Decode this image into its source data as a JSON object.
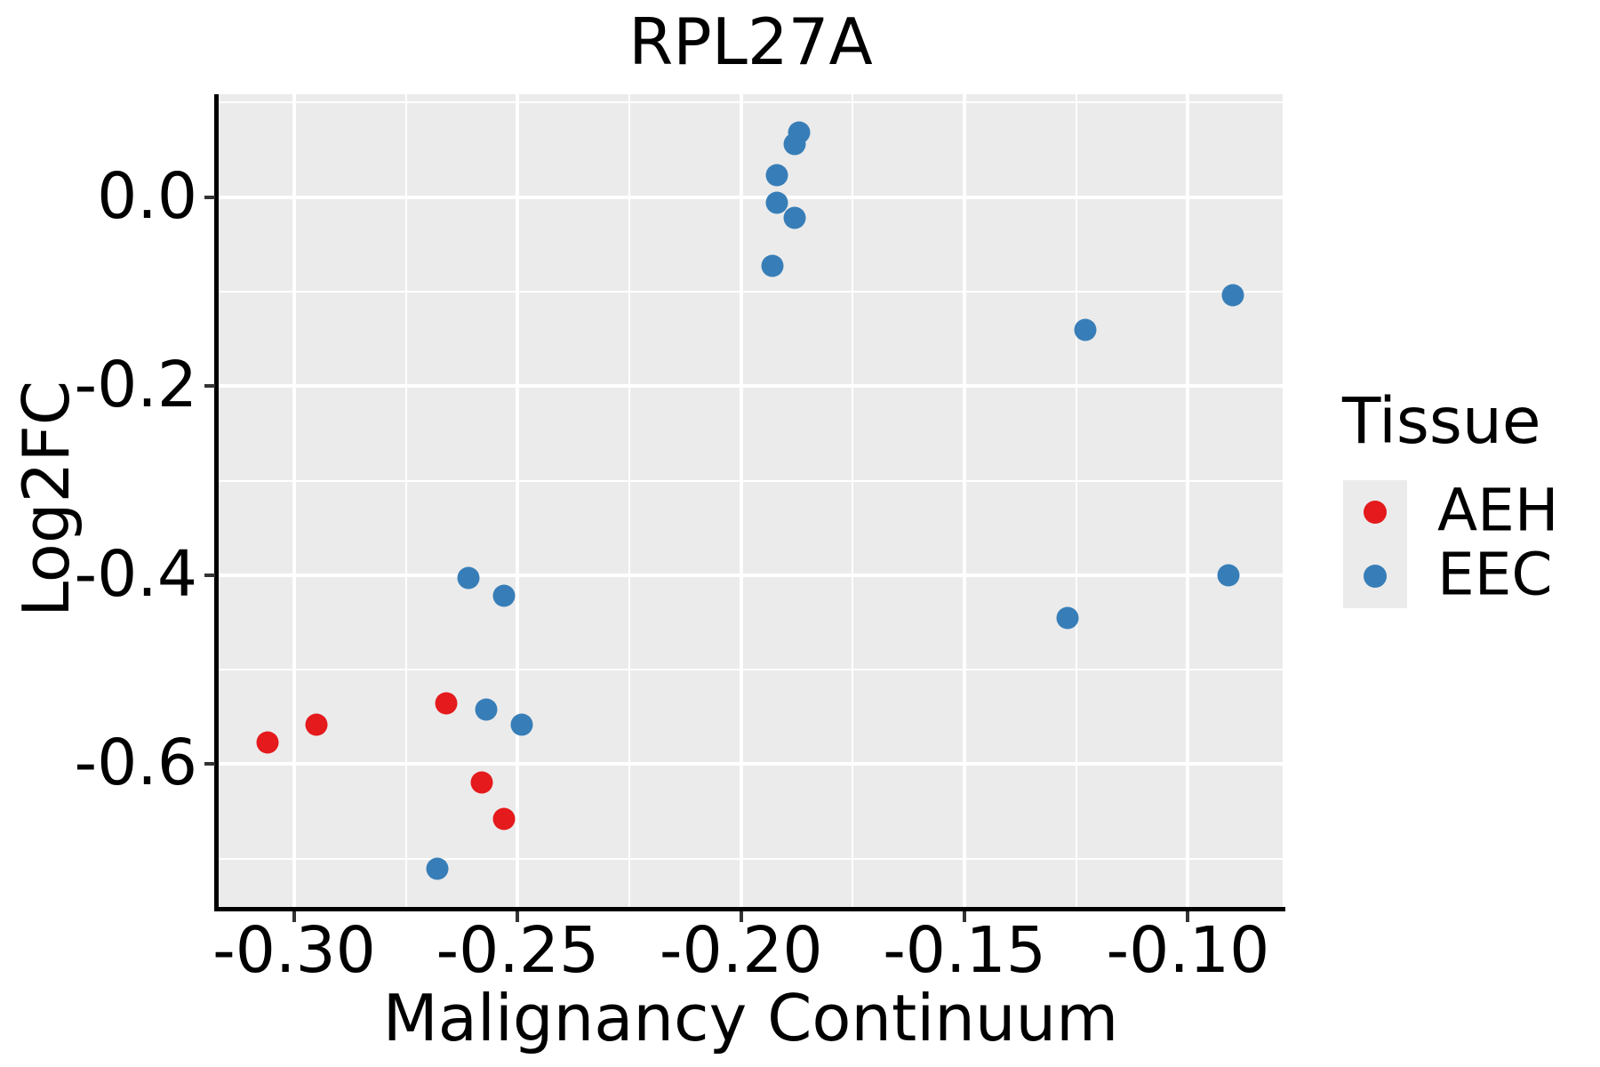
{
  "chart": {
    "title": "RPL27A",
    "xlabel": "Malignancy Continuum",
    "ylabel": "Log2FC"
  },
  "legend": {
    "title": "Tissue",
    "entries": [
      {
        "label": "AEH",
        "color": "#e41a1c"
      },
      {
        "label": "EEC",
        "color": "#377eb8"
      }
    ]
  },
  "chart_data": {
    "type": "scatter",
    "title": "RPL27A",
    "xlabel": "Malignancy Continuum",
    "ylabel": "Log2FC",
    "xlim": [
      -0.3169,
      -0.0788
    ],
    "ylim": [
      -0.7511,
      0.1089
    ],
    "x_ticks": [
      -0.3,
      -0.25,
      -0.2,
      -0.15,
      -0.1
    ],
    "x_tick_labels": [
      "-0.30",
      "-0.25",
      "-0.20",
      "-0.15",
      "-0.10"
    ],
    "x_minor_ticks": [
      -0.275,
      -0.225,
      -0.175,
      -0.125
    ],
    "y_ticks": [
      0.0,
      -0.2,
      -0.4,
      -0.6
    ],
    "y_tick_labels": [
      "0.0",
      "-0.2",
      "-0.4",
      "-0.6"
    ],
    "y_minor_ticks": [
      0.1,
      -0.1,
      -0.3,
      -0.5,
      -0.7
    ],
    "grid": "major-and-minor, white on gray panel",
    "legend_position": "right",
    "panel_bg": "#ebebeb",
    "grid_color": "#ffffff",
    "series": [
      {
        "name": "AEH",
        "color": "#e41a1c",
        "points": [
          [
            -0.306,
            -0.577
          ],
          [
            -0.295,
            -0.558
          ],
          [
            -0.266,
            -0.536
          ],
          [
            -0.258,
            -0.619
          ],
          [
            -0.253,
            -0.658
          ]
        ]
      },
      {
        "name": "EEC",
        "color": "#377eb8",
        "points": [
          [
            -0.187,
            0.068
          ],
          [
            -0.188,
            0.056
          ],
          [
            -0.192,
            0.023
          ],
          [
            -0.192,
            -0.006
          ],
          [
            -0.188,
            -0.022
          ],
          [
            -0.193,
            -0.073
          ],
          [
            -0.09,
            -0.104
          ],
          [
            -0.123,
            -0.14
          ],
          [
            -0.091,
            -0.4
          ],
          [
            -0.127,
            -0.445
          ],
          [
            -0.261,
            -0.403
          ],
          [
            -0.253,
            -0.422
          ],
          [
            -0.257,
            -0.542
          ],
          [
            -0.249,
            -0.558
          ],
          [
            -0.268,
            -0.711
          ]
        ]
      }
    ]
  }
}
